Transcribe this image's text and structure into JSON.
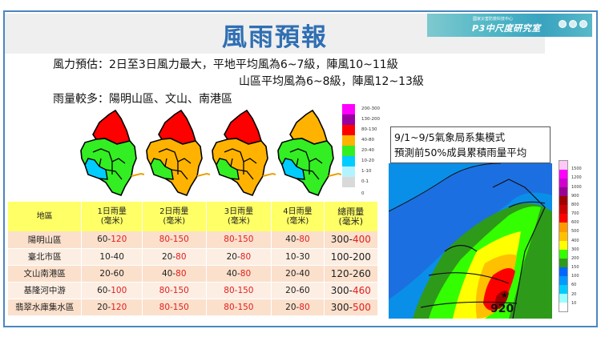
{
  "header": {
    "title": "風雨預報",
    "logo": {
      "subtitle": "國家災害防救科技中心",
      "name": "P3中尺度研究室"
    }
  },
  "summary": {
    "wind_label": "風力預估：",
    "wind_line1": "風力預估：2日至3日風力最大，平地平均風為6~7級，陣風10~11級",
    "wind_line2": "山區平均風為6~8級，陣風12~13級",
    "rain_line": "雨量較多：陽明山區、文山、南港區"
  },
  "map_legend": {
    "items": [
      {
        "label": "200-300",
        "color": "#ff00ff"
      },
      {
        "label": "130-200",
        "color": "#9900a0"
      },
      {
        "label": "80-130",
        "color": "#ff0000"
      },
      {
        "label": "40-80",
        "color": "#ffb300"
      },
      {
        "label": "20-40",
        "color": "#33ee22"
      },
      {
        "label": "10-20",
        "color": "#00ccff"
      },
      {
        "label": "1-10",
        "color": "#b3f3ff"
      },
      {
        "label": "0-1",
        "color": "#d9d9d9"
      }
    ],
    "zero_label": "0"
  },
  "daily_maps": [
    {
      "day": "1日",
      "north": "#ff0000",
      "center": "#33ee22",
      "west": "#00ccff"
    },
    {
      "day": "2日",
      "north": "#ff0000",
      "center": "#ffb300",
      "west": "#33ee22"
    },
    {
      "day": "3日",
      "north": "#ff0000",
      "center": "#ffb300",
      "west": "#33ee22"
    },
    {
      "day": "4日",
      "north": "#ffb300",
      "center": "#33ee22",
      "west": "#00ccff"
    }
  ],
  "table": {
    "headers": [
      {
        "line1": "地區",
        "line2": ""
      },
      {
        "line1": "1日雨量",
        "line2": "(毫米)"
      },
      {
        "line1": "2日雨量",
        "line2": "(毫米)"
      },
      {
        "line1": "3日雨量",
        "line2": "(毫米)"
      },
      {
        "line1": "4日雨量",
        "line2": "(毫米)"
      },
      {
        "line1": "總雨量",
        "line2": "(毫米)"
      }
    ],
    "rows": [
      {
        "area": "陽明山區",
        "d1": [
          "60-",
          "120"
        ],
        "d2": [
          "",
          "80-150"
        ],
        "d3": [
          "",
          "80-150"
        ],
        "d4": [
          "40-",
          "80"
        ],
        "total": [
          "300-",
          "400"
        ]
      },
      {
        "area": "臺北市區",
        "d1": [
          "10-40",
          ""
        ],
        "d2": [
          "20-",
          "80"
        ],
        "d3": [
          "20-",
          "80"
        ],
        "d4": [
          "10-30",
          ""
        ],
        "total": [
          "100-200",
          ""
        ]
      },
      {
        "area": "文山南港區",
        "d1": [
          "20-60",
          ""
        ],
        "d2": [
          "40-",
          "80"
        ],
        "d3": [
          "40-",
          "80"
        ],
        "d4": [
          "20-40",
          ""
        ],
        "total": [
          "120-260",
          ""
        ]
      },
      {
        "area": "基隆河中游",
        "d1": [
          "60-",
          "100"
        ],
        "d2": [
          "",
          "80-150"
        ],
        "d3": [
          "",
          "80-150"
        ],
        "d4": [
          "20-60",
          ""
        ],
        "total": [
          "300-",
          "460"
        ]
      },
      {
        "area": "翡翠水庫集水區",
        "d1": [
          "20-",
          "120"
        ],
        "d2": [
          "",
          "80-150"
        ],
        "d3": [
          "",
          "80-150"
        ],
        "d4": [
          "20-",
          "80"
        ],
        "total": [
          "300-",
          "500"
        ]
      }
    ]
  },
  "ensemble": {
    "caption_line1": "9/1~9/5氣象局系集模式",
    "caption_line2": "預測前50%成員累積雨量平均",
    "max_value": "920",
    "legend": [
      {
        "label": "1500",
        "color": "#ffc8f5"
      },
      {
        "label": "1200",
        "color": "#ff00ff"
      },
      {
        "label": "1000",
        "color": "#d000d0"
      },
      {
        "label": "900",
        "color": "#9a0094"
      },
      {
        "label": "800",
        "color": "#a00000"
      },
      {
        "label": "700",
        "color": "#cc0000"
      },
      {
        "label": "600",
        "color": "#ff0000"
      },
      {
        "label": "500",
        "color": "#ff9900"
      },
      {
        "label": "400",
        "color": "#ffc000"
      },
      {
        "label": "300",
        "color": "#ffff00"
      },
      {
        "label": "200",
        "color": "#33ff00"
      },
      {
        "label": "150",
        "color": "#2e9a1a"
      },
      {
        "label": "100",
        "color": "#0066ff"
      },
      {
        "label": "60",
        "color": "#0099ff"
      },
      {
        "label": "20",
        "color": "#00ccff"
      },
      {
        "label": "10",
        "color": "#99ffff"
      },
      {
        "label": "",
        "color": "#ffffff"
      }
    ]
  }
}
